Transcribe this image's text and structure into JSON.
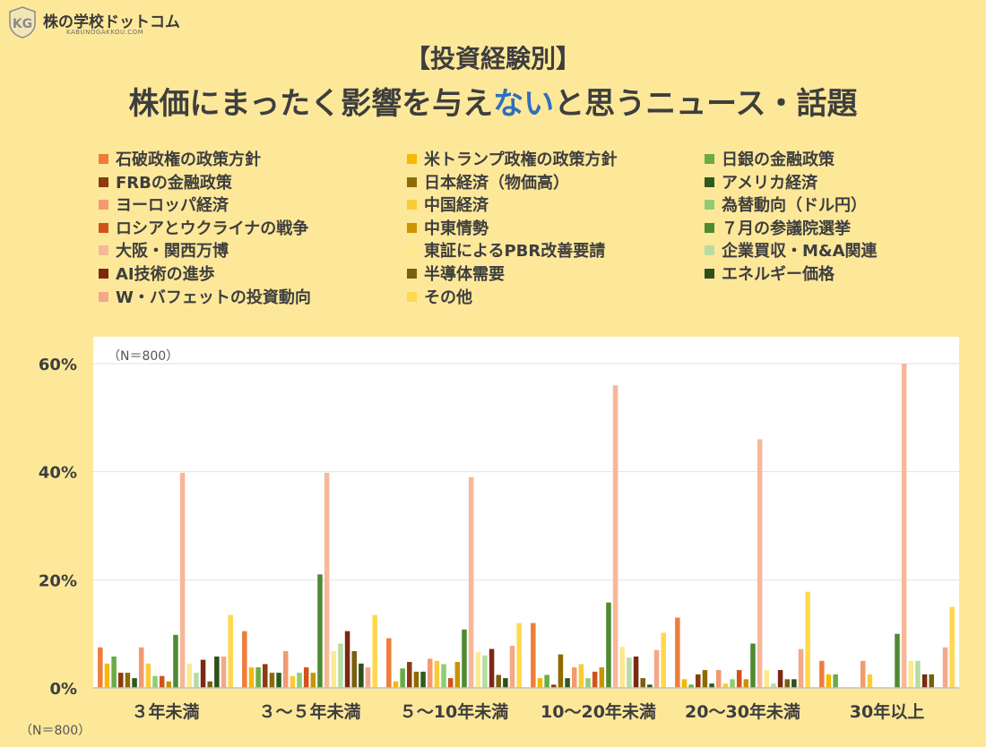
{
  "brand": {
    "name": "株の学校ドットコム",
    "sub": "KABUNOGAKKOU.COM",
    "mark": "KG"
  },
  "title_line1": "【投資経験別】",
  "title_line2_a": "株価にまったく影響を与え",
  "title_line2_b": "ない",
  "title_line2_c": "と思うニュース・話題",
  "n_inner": "（N＝800）",
  "n_outer": "（N＝800）",
  "colors": {
    "accent": "#2f6fbd",
    "background": "#fde89a",
    "series": [
      "#ee7d3b",
      "#f8b800",
      "#6aab46",
      "#8a3b10",
      "#8f6a00",
      "#2d5a1f",
      "#f39a70",
      "#fbcb37",
      "#8fcc73",
      "#d0531c",
      "#c99400",
      "#4f8a32",
      "#f6b899",
      "#fde98f",
      "#b7dca3",
      "#7a2a10",
      "#7a5f10",
      "#2f4f1a",
      "#f2a889",
      "#ffd84e"
    ]
  },
  "chart_data": {
    "type": "bar",
    "title": "【投資経験別】株価にまったく影響を与えないと思うニュース・話題",
    "xlabel": "",
    "ylabel": "",
    "ylim": [
      0,
      60
    ],
    "yticks": [
      "0%",
      "20%",
      "40%",
      "60%"
    ],
    "grid": true,
    "legend_position": "top",
    "categories": [
      "３年未満",
      "３～５年未満",
      "５～10年未満",
      "10～20年未満",
      "20～30年未満",
      "30年以上"
    ],
    "series": [
      {
        "name": "石破政権の政策方針",
        "values": [
          7.5,
          10.5,
          9.2,
          12.0,
          13.0,
          5.0
        ]
      },
      {
        "name": "米トランプ政権の政策方針",
        "values": [
          4.5,
          3.8,
          1.2,
          1.8,
          1.6,
          2.5
        ]
      },
      {
        "name": "日銀の金融政策",
        "values": [
          5.8,
          3.8,
          3.6,
          2.4,
          0.6,
          2.5
        ]
      },
      {
        "name": "FRBの金融政策",
        "values": [
          2.8,
          4.4,
          4.8,
          0.6,
          2.5,
          0
        ]
      },
      {
        "name": "日本経済（物価高）",
        "values": [
          2.8,
          2.8,
          3.0,
          6.2,
          3.3,
          0
        ]
      },
      {
        "name": "アメリカ経済",
        "values": [
          1.8,
          2.8,
          3.0,
          1.8,
          0.8,
          0
        ]
      },
      {
        "name": "ヨーロッパ経済",
        "values": [
          7.5,
          6.8,
          5.4,
          3.8,
          3.3,
          5.0
        ]
      },
      {
        "name": "中国経済",
        "values": [
          4.5,
          2.2,
          5.0,
          4.4,
          0.8,
          2.5
        ]
      },
      {
        "name": "為替動向（ドル円）",
        "values": [
          2.2,
          2.8,
          4.4,
          1.8,
          1.6,
          0
        ]
      },
      {
        "name": "ロシアとウクライナの戦争",
        "values": [
          2.2,
          3.8,
          1.8,
          3.0,
          3.3,
          0
        ]
      },
      {
        "name": "中東情勢",
        "values": [
          1.2,
          2.8,
          4.8,
          3.8,
          1.6,
          0
        ]
      },
      {
        "name": "７月の参議院選挙",
        "values": [
          9.8,
          21.0,
          10.8,
          15.8,
          8.2,
          10.0
        ]
      },
      {
        "name": "大阪・関西万博",
        "values": [
          39.8,
          39.8,
          39.0,
          56.0,
          46.0,
          60.0
        ]
      },
      {
        "name": "東証によるPBR改善要請",
        "values": [
          4.5,
          6.8,
          6.6,
          7.6,
          3.3,
          5.0
        ]
      },
      {
        "name": "企業買収・M&A関連",
        "values": [
          2.8,
          8.2,
          6.0,
          5.6,
          0.8,
          5.0
        ]
      },
      {
        "name": "AI技術の進歩",
        "values": [
          5.2,
          10.5,
          7.2,
          5.8,
          3.3,
          2.5
        ]
      },
      {
        "name": "半導体需要",
        "values": [
          1.2,
          6.8,
          2.4,
          1.8,
          1.6,
          2.5
        ]
      },
      {
        "name": "エネルギー価格",
        "values": [
          5.8,
          4.5,
          1.8,
          0.6,
          1.6,
          0
        ]
      },
      {
        "name": "W・バフェットの投資動向",
        "values": [
          5.8,
          3.8,
          7.8,
          7.0,
          7.2,
          7.5
        ]
      },
      {
        "name": "その他",
        "values": [
          13.5,
          13.5,
          12.0,
          10.2,
          17.8,
          15.0
        ]
      }
    ]
  }
}
